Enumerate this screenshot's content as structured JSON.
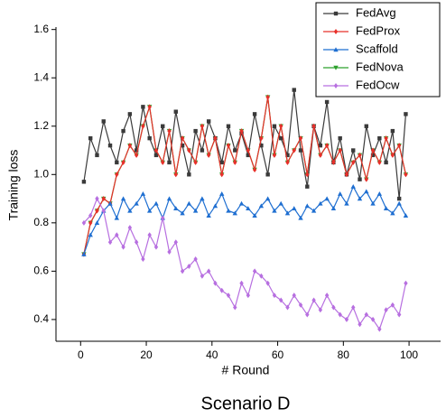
{
  "chart_data": {
    "type": "line",
    "title": "Scenario D",
    "x_label": "# Round",
    "y_label": "Training loss",
    "x": [
      1,
      3,
      5,
      7,
      9,
      11,
      13,
      15,
      17,
      19,
      21,
      23,
      25,
      27,
      29,
      31,
      33,
      35,
      37,
      39,
      41,
      43,
      45,
      47,
      49,
      51,
      53,
      55,
      57,
      59,
      61,
      63,
      65,
      67,
      69,
      71,
      73,
      75,
      77,
      79,
      81,
      83,
      85,
      87,
      89,
      91,
      93,
      95,
      97,
      99
    ],
    "series": [
      {
        "name": "FedAvg",
        "color": "#3a3a3a",
        "marker": "square",
        "values": [
          0.97,
          1.15,
          1.08,
          1.22,
          1.12,
          1.05,
          1.18,
          1.25,
          1.1,
          1.28,
          1.15,
          1.08,
          1.2,
          1.05,
          1.26,
          1.12,
          1.0,
          1.18,
          1.1,
          1.22,
          1.15,
          1.05,
          1.2,
          1.1,
          1.17,
          1.08,
          1.25,
          1.12,
          1.0,
          1.2,
          1.15,
          1.08,
          1.35,
          1.1,
          0.95,
          1.2,
          1.12,
          1.3,
          1.05,
          1.15,
          1.0,
          1.1,
          0.98,
          1.2,
          1.08,
          1.15,
          1.05,
          1.18,
          0.9,
          1.25
        ]
      },
      {
        "name": "FedProx",
        "color": "#e8302a",
        "marker": "diamond",
        "values": [
          0.67,
          0.8,
          0.85,
          0.9,
          0.88,
          1.0,
          1.05,
          1.12,
          1.08,
          1.2,
          1.28,
          1.1,
          1.05,
          1.18,
          1.0,
          1.15,
          1.1,
          1.05,
          1.2,
          1.08,
          1.15,
          1.0,
          1.12,
          1.05,
          1.18,
          1.1,
          1.02,
          1.15,
          1.32,
          1.08,
          1.2,
          1.05,
          1.1,
          1.15,
          1.0,
          1.2,
          1.08,
          1.12,
          1.05,
          1.1,
          1.0,
          1.05,
          1.08,
          0.98,
          1.1,
          1.05,
          1.15,
          1.08,
          1.12,
          1.0
        ]
      },
      {
        "name": "Scaffold",
        "color": "#1f6fd1",
        "marker": "triangle",
        "values": [
          0.67,
          0.75,
          0.8,
          0.85,
          0.88,
          0.82,
          0.9,
          0.85,
          0.88,
          0.92,
          0.85,
          0.88,
          0.82,
          0.9,
          0.86,
          0.84,
          0.88,
          0.85,
          0.9,
          0.83,
          0.87,
          0.92,
          0.85,
          0.84,
          0.88,
          0.86,
          0.83,
          0.87,
          0.9,
          0.85,
          0.88,
          0.84,
          0.86,
          0.82,
          0.87,
          0.85,
          0.88,
          0.9,
          0.86,
          0.92,
          0.88,
          0.95,
          0.9,
          0.93,
          0.88,
          0.92,
          0.86,
          0.84,
          0.88,
          0.83
        ]
      },
      {
        "name": "FedNova",
        "color": "#2ca02c",
        "marker": "triangle-down",
        "values": [
          0.67,
          0.8,
          0.85,
          0.9,
          0.88,
          1.0,
          1.05,
          1.12,
          1.08,
          1.2,
          1.28,
          1.1,
          1.05,
          1.18,
          1.0,
          1.15,
          1.1,
          1.05,
          1.2,
          1.08,
          1.15,
          1.0,
          1.12,
          1.05,
          1.18,
          1.1,
          1.02,
          1.15,
          1.32,
          1.08,
          1.2,
          1.05,
          1.1,
          1.15,
          1.0,
          1.2,
          1.08,
          1.12,
          1.05,
          1.1,
          1.0,
          1.05,
          1.08,
          0.98,
          1.1,
          1.05,
          1.15,
          1.08,
          1.12,
          1.0
        ]
      },
      {
        "name": "FedOcw",
        "color": "#b76fe0",
        "marker": "diamond",
        "values": [
          0.8,
          0.83,
          0.9,
          0.85,
          0.72,
          0.75,
          0.7,
          0.78,
          0.72,
          0.65,
          0.75,
          0.7,
          0.82,
          0.68,
          0.72,
          0.6,
          0.62,
          0.65,
          0.58,
          0.6,
          0.55,
          0.52,
          0.5,
          0.45,
          0.55,
          0.5,
          0.6,
          0.58,
          0.55,
          0.5,
          0.48,
          0.45,
          0.5,
          0.46,
          0.42,
          0.48,
          0.44,
          0.5,
          0.45,
          0.42,
          0.4,
          0.45,
          0.38,
          0.42,
          0.4,
          0.36,
          0.44,
          0.46,
          0.42,
          0.55
        ]
      }
    ],
    "xlim": [
      -7.5,
      109.6
    ],
    "xticks": [
      0,
      20,
      40,
      60,
      80,
      100
    ],
    "ylim": [
      0.31,
      1.61
    ],
    "yticks": [
      0.4,
      0.6,
      0.8,
      {
        "value": 1,
        "label": "1.0"
      },
      1.2,
      1.4,
      1.6
    ],
    "legend": "upper right"
  }
}
